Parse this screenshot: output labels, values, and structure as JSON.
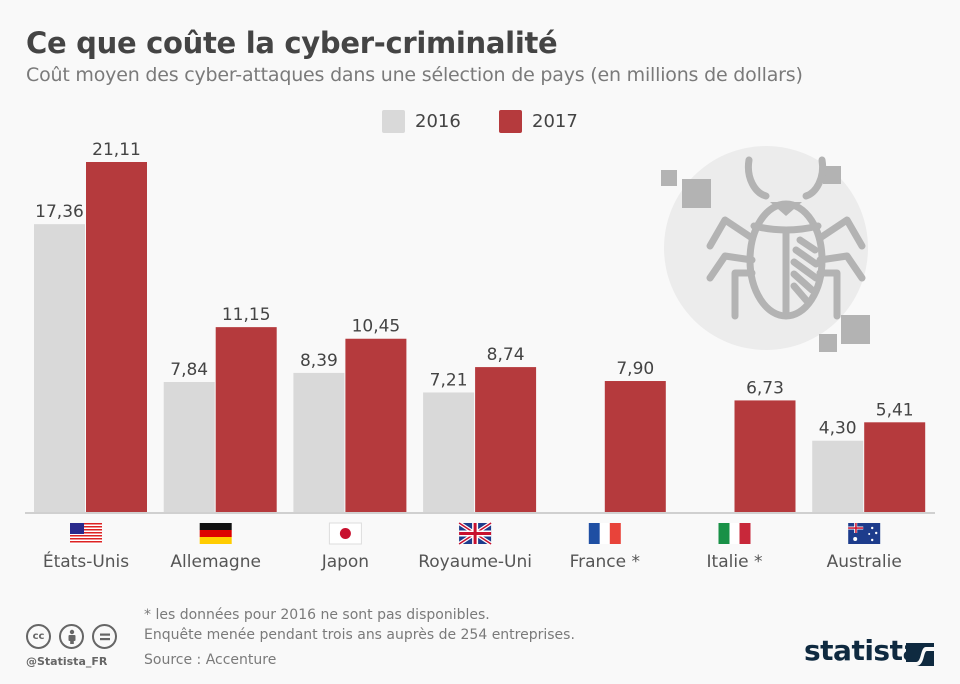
{
  "header": {
    "title": "Ce que coûte la cyber-criminalité",
    "subtitle": "Coût moyen des cyber-attaques dans une sélection de pays (en millions de dollars)"
  },
  "legend": {
    "items": [
      {
        "label": "2016",
        "color": "#d9d9d9"
      },
      {
        "label": "2017",
        "color": "#b53a3d"
      }
    ]
  },
  "chart_data": {
    "type": "bar",
    "title": "Ce que coûte la cyber-criminalité",
    "subtitle": "Coût moyen des cyber-attaques dans une sélection de pays (en millions de dollars)",
    "xlabel": "",
    "ylabel": "",
    "ylim": [
      0,
      21.11
    ],
    "grid": false,
    "legend_position": "top-center",
    "categories": [
      "États-Unis",
      "Allemagne",
      "Japon",
      "Royaume-Uni",
      "France *",
      "Italie *",
      "Australie"
    ],
    "flags": [
      "us-flag",
      "germany-flag",
      "japan-flag",
      "uk-flag",
      "france-flag",
      "italy-flag",
      "australia-flag"
    ],
    "series": [
      {
        "name": "2016",
        "color": "#d9d9d9",
        "values": [
          17.36,
          7.84,
          8.39,
          7.21,
          null,
          null,
          4.3
        ],
        "labels": [
          "17,36",
          "7,84",
          "8,39",
          "7,21",
          "",
          "",
          "4,30"
        ]
      },
      {
        "name": "2017",
        "color": "#b53a3d",
        "values": [
          21.11,
          11.15,
          10.45,
          8.74,
          7.9,
          6.73,
          5.41
        ],
        "labels": [
          "21,11",
          "11,15",
          "10,45",
          "8,74",
          "7,90",
          "6,73",
          "5,41"
        ]
      }
    ]
  },
  "footer": {
    "note": "* les données pour 2016 ne sont pas disponibles.",
    "survey": "Enquête menée pendant trois ans auprès de 254 entreprises.",
    "source": "Source : Accenture",
    "handle": "@Statista_FR",
    "brand": "statista",
    "license_icons": [
      "cc-icon",
      "attribution-icon",
      "no-derivatives-icon"
    ]
  }
}
